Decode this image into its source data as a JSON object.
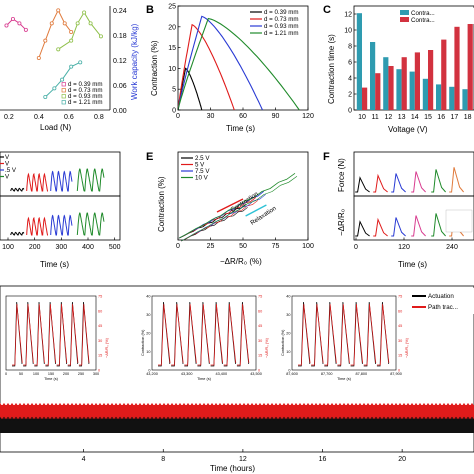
{
  "panels": {
    "A": {
      "load_axis": {
        "label": "Load (N)",
        "ticks": [
          "0.2",
          "0.4",
          "0.6",
          "0.8"
        ]
      },
      "work_axis": {
        "label": "Work capacity (kJ/kg)",
        "ticks": [
          "0.00",
          "0.06",
          "0.12",
          "0.18",
          "0.24"
        ]
      },
      "legend": [
        "d = 0.39 mm",
        "d = 0.73 mm",
        "d = 0.93 mm",
        "d = 1.21 mm"
      ],
      "colors": [
        "#d83b8f",
        "#e07a3c",
        "#8fc04a",
        "#4ab0a8"
      ]
    },
    "B": {
      "letter": "B",
      "xlabel": "Time (s)",
      "ylabel": "Contraction (%)",
      "xticks": [
        "0",
        "30",
        "60",
        "90",
        "120"
      ],
      "yticks": [
        "0",
        "5",
        "10",
        "15",
        "20",
        "25"
      ],
      "legend": [
        "d = 0.39 mm",
        "d = 0.73 mm",
        "d = 0.93 mm",
        "d = 1.21 mm"
      ]
    },
    "C": {
      "letter": "C",
      "xlabel": "Voltage (V)",
      "ylabel": "Contraction time (s)",
      "yticks": [
        "0",
        "2",
        "4",
        "6",
        "8",
        "10",
        "12"
      ],
      "legend": [
        "Contra...",
        "Contra..."
      ]
    },
    "D": {
      "xlabel": "Time (s)",
      "xticks": [
        "100",
        "200",
        "300",
        "400",
        "500"
      ],
      "legend": [
        "V",
        "V",
        ".5 V",
        "V"
      ]
    },
    "E": {
      "letter": "E",
      "xlabel": "−ΔR/R₀ (%)",
      "ylabel": "Contraction (%)",
      "xticks": [
        "0",
        "25",
        "50",
        "75",
        "100"
      ],
      "legend": [
        "2.5 V",
        "5 V",
        "7.5 V",
        "10 V"
      ],
      "annot_contraction": "Contraction",
      "annot_relaxation": "Relaxation"
    },
    "F": {
      "letter": "F",
      "xlabel": "Time (s)",
      "ylabel_top": "Force (N)",
      "ylabel_bottom": "−ΔR/R₀",
      "xticks": [
        "0",
        "120",
        "240"
      ]
    },
    "G": {
      "xlabel": "Time (hours)",
      "xticks": [
        "4",
        "8",
        "12",
        "16",
        "20"
      ],
      "legend": [
        "Actuation",
        "Path trac..."
      ],
      "inset1": {
        "xlabel": "Time (s)",
        "xticks": [
          "0",
          "50",
          "100",
          "150",
          "200",
          "250",
          "300"
        ]
      },
      "inset2": {
        "xlabel": "Time (s)",
        "xticks": [
          "43,200",
          "43,300",
          "43,400",
          "43,500"
        ]
      },
      "inset3": {
        "xlabel": "Time (s)",
        "xticks": [
          "87,600",
          "87,700",
          "87,800",
          "87,900"
        ]
      },
      "inset_ylabel_left": "Contraction (%)",
      "inset_ylabel_right": "−ΔR/R₀ (%)",
      "inset_yticks_right": [
        "0",
        "15",
        "30",
        "45",
        "60",
        "75"
      ],
      "inset_yticks_left": [
        "0",
        "10",
        "20",
        "30",
        "40"
      ]
    }
  },
  "chart_data": [
    {
      "panel": "A",
      "type": "line",
      "xlabel": "Load (N)",
      "ylabel": "Work capacity (kJ/kg)",
      "ylim": [
        0,
        0.24
      ],
      "series": [
        {
          "name": "d = 0.39 mm",
          "x": [
            0.05,
            0.1,
            0.15,
            0.2
          ],
          "y": [
            0.195,
            0.21,
            0.2,
            0.185
          ]
        },
        {
          "name": "d = 0.73 mm",
          "x": [
            0.3,
            0.35,
            0.4,
            0.45,
            0.5,
            0.55
          ],
          "y": [
            0.12,
            0.16,
            0.2,
            0.23,
            0.2,
            0.18
          ]
        },
        {
          "name": "d = 0.93 mm",
          "x": [
            0.45,
            0.55,
            0.6,
            0.65,
            0.7,
            0.78
          ],
          "y": [
            0.14,
            0.16,
            0.2,
            0.225,
            0.2,
            0.17
          ]
        },
        {
          "name": "d = 1.21 mm",
          "x": [
            0.35,
            0.42,
            0.48,
            0.55,
            0.62
          ],
          "y": [
            0.03,
            0.05,
            0.07,
            0.1,
            0.11
          ]
        }
      ]
    },
    {
      "panel": "B",
      "type": "line",
      "xlabel": "Time (s)",
      "ylabel": "Contraction (%)",
      "xlim": [
        0,
        120
      ],
      "ylim": [
        0,
        25
      ],
      "series": [
        {
          "name": "d = 0.39 mm",
          "color": "#000000",
          "peak_time": 7,
          "end_time": 22,
          "peak": 10
        },
        {
          "name": "d = 0.73 mm",
          "color": "#e01b1b",
          "peak_time": 13,
          "end_time": 52,
          "peak": 20.5
        },
        {
          "name": "d = 0.93 mm",
          "color": "#2a3bd4",
          "peak_time": 22,
          "end_time": 78,
          "peak": 22.5
        },
        {
          "name": "d = 1.21 mm",
          "color": "#1f8a2a",
          "peak_time": 28,
          "end_time": 112,
          "peak": 22
        }
      ]
    },
    {
      "panel": "C",
      "type": "bar",
      "xlabel": "Voltage (V)",
      "ylabel": "Contraction time (s)",
      "categories": [
        "10",
        "11",
        "12",
        "13",
        "14",
        "15",
        "16",
        "17",
        "18"
      ],
      "ylim": [
        0,
        13
      ],
      "series": [
        {
          "color": "#2e9bb0",
          "values": [
            12.1,
            8.5,
            6.6,
            5.1,
            4.8,
            3.9,
            3.2,
            2.9,
            2.6
          ]
        },
        {
          "color": "#d2323f",
          "values": [
            2.8,
            4.6,
            5.5,
            6.6,
            7.2,
            7.5,
            8.8,
            10.4,
            11.2
          ]
        }
      ]
    },
    {
      "panel": "D",
      "type": "line",
      "xlabel": "Time (s)",
      "xlim": [
        100,
        500
      ],
      "series": [
        {
          "name": "V",
          "color": "#000000"
        },
        {
          "name": "V",
          "color": "#e01b1b"
        },
        {
          "name": ".5 V",
          "color": "#2a3bd4"
        },
        {
          "name": "V",
          "color": "#1f8a2a"
        }
      ]
    },
    {
      "panel": "E",
      "type": "scatter",
      "xlabel": "−ΔR/R₀ (%)",
      "ylabel": "Contraction (%)",
      "xlim": [
        0,
        100
      ],
      "series": [
        {
          "name": "2.5 V",
          "color": "#000000"
        },
        {
          "name": "5 V",
          "color": "#e01b1b"
        },
        {
          "name": "7.5 V",
          "color": "#2a3bd4"
        },
        {
          "name": "10 V",
          "color": "#1f8a2a"
        }
      ]
    },
    {
      "panel": "F",
      "type": "line",
      "xlabel": "Time (s)",
      "xlim": [
        0,
        300
      ],
      "series": [
        {
          "color": "#000000"
        },
        {
          "color": "#e01b1b"
        },
        {
          "color": "#2a3bd4"
        },
        {
          "color": "#d83b8f"
        },
        {
          "color": "#1f8a2a"
        },
        {
          "color": "#e07a3c"
        }
      ]
    },
    {
      "panel": "G",
      "type": "line",
      "xlabel": "Time (hours)",
      "xlim": [
        0,
        22
      ],
      "series": [
        {
          "name": "Actuation",
          "color": "#000000"
        },
        {
          "name": "Path trac...",
          "color": "#e01b1b"
        }
      ]
    }
  ]
}
